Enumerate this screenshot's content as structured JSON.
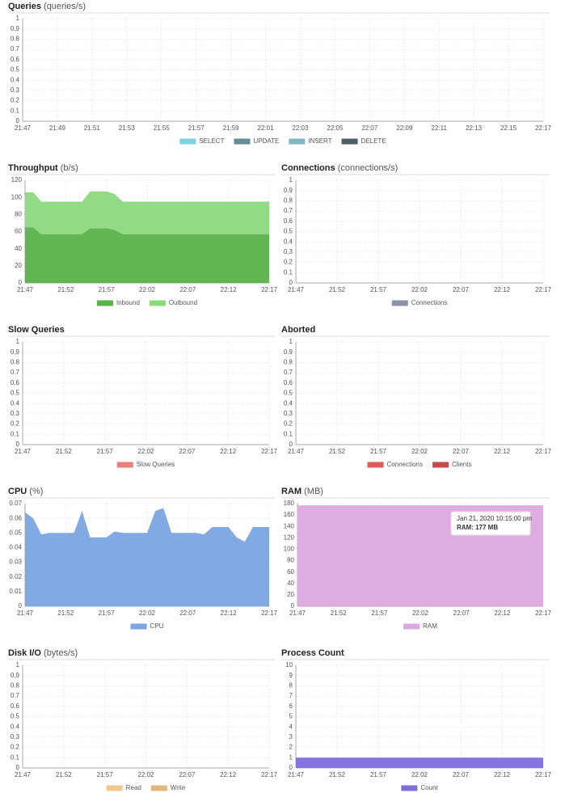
{
  "chart_data": [
    {
      "type": "line",
      "title": "Queries",
      "unit": "(queries/s)",
      "ylim": [
        0,
        1
      ],
      "yticks": [
        0,
        0.1,
        0.2,
        0.3,
        0.4,
        0.5,
        0.6,
        0.7,
        0.8,
        0.9,
        1
      ],
      "xticks": [
        "21:47",
        "21:49",
        "21:51",
        "21:53",
        "21:55",
        "21:57",
        "21:59",
        "22:01",
        "22:03",
        "22:05",
        "22:07",
        "22:09",
        "22:11",
        "22:13",
        "22:15",
        "22:17"
      ],
      "grid": true,
      "series": [
        {
          "name": "SELECT",
          "color": "#7fd3e0"
        },
        {
          "name": "UPDATE",
          "color": "#5f8f94"
        },
        {
          "name": "INSERT",
          "color": "#7fb8c4"
        },
        {
          "name": "DELETE",
          "color": "#4d5f66"
        }
      ]
    },
    {
      "type": "area",
      "stacked": true,
      "title": "Throughput",
      "unit": "(b/s)",
      "ylim": [
        0,
        120
      ],
      "yticks": [
        0,
        20,
        40,
        60,
        80,
        100,
        120
      ],
      "grid": true,
      "x": [
        "21:47",
        "21:48",
        "21:49",
        "21:50",
        "21:51",
        "21:52",
        "21:53",
        "21:54",
        "21:55",
        "21:56",
        "21:57",
        "21:58",
        "21:59",
        "22:00",
        "22:01",
        "22:02",
        "22:03",
        "22:04",
        "22:05",
        "22:06",
        "22:07",
        "22:08",
        "22:09",
        "22:10",
        "22:11",
        "22:12",
        "22:13",
        "22:14",
        "22:15",
        "22:16",
        "22:17"
      ],
      "xticks": [
        "21:47",
        "21:52",
        "21:57",
        "22:02",
        "22:07",
        "22:12",
        "22:17"
      ],
      "series": [
        {
          "name": "Inbound",
          "color": "#5ab24a",
          "values": [
            65,
            65,
            57,
            57,
            57,
            57,
            57,
            57,
            64,
            64,
            64,
            62,
            57,
            57,
            57,
            57,
            57,
            57,
            57,
            57,
            57,
            57,
            57,
            57,
            57,
            57,
            57,
            57,
            57,
            57,
            57
          ]
        },
        {
          "name": "Outbound",
          "color": "#8cd97e",
          "values": [
            41,
            41,
            38,
            38,
            38,
            38,
            38,
            38,
            43,
            43,
            43,
            42,
            38,
            38,
            38,
            38,
            38,
            38,
            38,
            38,
            38,
            38,
            38,
            38,
            38,
            38,
            38,
            38,
            38,
            38,
            38
          ]
        }
      ]
    },
    {
      "type": "line",
      "title": "Connections",
      "unit": "(connections/s)",
      "ylim": [
        0,
        1
      ],
      "yticks": [
        0,
        0.1,
        0.2,
        0.3,
        0.4,
        0.5,
        0.6,
        0.7,
        0.8,
        0.9,
        1
      ],
      "xticks": [
        "21:47",
        "21:52",
        "21:57",
        "22:02",
        "22:07",
        "22:12",
        "22:17"
      ],
      "grid": true,
      "series": [
        {
          "name": "Connections",
          "color": "#8a93a5"
        }
      ]
    },
    {
      "type": "line",
      "title": "Slow Queries",
      "ylim": [
        0,
        1
      ],
      "yticks": [
        0,
        0.1,
        0.2,
        0.3,
        0.4,
        0.5,
        0.6,
        0.7,
        0.8,
        0.9,
        1
      ],
      "xticks": [
        "21:47",
        "21:52",
        "21:57",
        "22:02",
        "22:07",
        "22:12",
        "22:17"
      ],
      "grid": true,
      "series": [
        {
          "name": "Slow Queries",
          "color": "#e88080"
        }
      ]
    },
    {
      "type": "line",
      "title": "Aborted",
      "ylim": [
        0,
        1
      ],
      "yticks": [
        0,
        0.1,
        0.2,
        0.3,
        0.4,
        0.5,
        0.6,
        0.7,
        0.8,
        0.9,
        1
      ],
      "xticks": [
        "21:47",
        "21:52",
        "21:57",
        "22:02",
        "22:07",
        "22:12",
        "22:17"
      ],
      "grid": true,
      "series": [
        {
          "name": "Connections",
          "color": "#e05a5a"
        },
        {
          "name": "Clients",
          "color": "#c94848"
        }
      ]
    },
    {
      "type": "area",
      "title": "CPU",
      "unit": "(%)",
      "ylim": [
        0,
        0.07
      ],
      "yticks": [
        0,
        0.01,
        0.02,
        0.03,
        0.04,
        0.05,
        0.06,
        0.07
      ],
      "grid": true,
      "x": [
        "21:47",
        "21:48",
        "21:49",
        "21:50",
        "21:51",
        "21:52",
        "21:53",
        "21:54",
        "21:55",
        "21:56",
        "21:57",
        "21:58",
        "21:59",
        "22:00",
        "22:01",
        "22:02",
        "22:03",
        "22:04",
        "22:05",
        "22:06",
        "22:07",
        "22:08",
        "22:09",
        "22:10",
        "22:11",
        "22:12",
        "22:13",
        "22:14",
        "22:15",
        "22:16",
        "22:17"
      ],
      "xticks": [
        "21:47",
        "21:52",
        "21:57",
        "22:02",
        "22:07",
        "22:12",
        "22:17"
      ],
      "series": [
        {
          "name": "CPU",
          "color": "#7ba5e0",
          "values": [
            0.064,
            0.06,
            0.049,
            0.05,
            0.05,
            0.05,
            0.05,
            0.065,
            0.047,
            0.047,
            0.047,
            0.051,
            0.05,
            0.05,
            0.05,
            0.05,
            0.065,
            0.067,
            0.05,
            0.05,
            0.05,
            0.05,
            0.049,
            0.054,
            0.054,
            0.054,
            0.047,
            0.044,
            0.054,
            0.054,
            0.054
          ]
        }
      ]
    },
    {
      "type": "area",
      "title": "RAM",
      "unit": "(MB)",
      "ylim": [
        0,
        180
      ],
      "yticks": [
        0,
        20,
        40,
        60,
        80,
        100,
        120,
        140,
        160,
        180
      ],
      "grid": true,
      "x": [
        "21:47",
        "21:48",
        "21:49",
        "21:50",
        "21:51",
        "21:52",
        "21:53",
        "21:54",
        "21:55",
        "21:56",
        "21:57",
        "21:58",
        "21:59",
        "22:00",
        "22:01",
        "22:02",
        "22:03",
        "22:04",
        "22:05",
        "22:06",
        "22:07",
        "22:08",
        "22:09",
        "22:10",
        "22:11",
        "22:12",
        "22:13",
        "22:14",
        "22:15",
        "22:16",
        "22:17"
      ],
      "xticks": [
        "21:47",
        "21:52",
        "21:57",
        "22:02",
        "22:07",
        "22:12",
        "22:17"
      ],
      "series": [
        {
          "name": "RAM",
          "color": "#dda8e0",
          "values": [
            177,
            177,
            177,
            177,
            177,
            177,
            177,
            177,
            177,
            177,
            177,
            177,
            177,
            177,
            177,
            177,
            177,
            177,
            177,
            177,
            177,
            177,
            177,
            177,
            177,
            177,
            177,
            177,
            177,
            177,
            177
          ]
        }
      ],
      "tooltip": {
        "title": "Jan 21, 2020 10:15:00 pm",
        "text": "RAM: 177 MB"
      }
    },
    {
      "type": "line",
      "title": "Disk I/O",
      "unit": "(bytes/s)",
      "ylim": [
        0,
        1
      ],
      "yticks": [
        0,
        0.1,
        0.2,
        0.3,
        0.4,
        0.5,
        0.6,
        0.7,
        0.8,
        0.9,
        1
      ],
      "xticks": [
        "21:47",
        "21:52",
        "21:57",
        "22:02",
        "22:07",
        "22:12",
        "22:17"
      ],
      "grid": true,
      "series": [
        {
          "name": "Read",
          "color": "#f0c88a"
        },
        {
          "name": "Write",
          "color": "#e6b877"
        }
      ]
    },
    {
      "type": "area",
      "title": "Process Count",
      "ylim": [
        0,
        10
      ],
      "yticks": [
        0,
        1,
        2,
        3,
        4,
        5,
        6,
        7,
        8,
        9,
        10
      ],
      "grid": true,
      "x": [
        "21:47",
        "21:48",
        "21:49",
        "21:50",
        "21:51",
        "21:52",
        "21:53",
        "21:54",
        "21:55",
        "21:56",
        "21:57",
        "21:58",
        "21:59",
        "22:00",
        "22:01",
        "22:02",
        "22:03",
        "22:04",
        "22:05",
        "22:06",
        "22:07",
        "22:08",
        "22:09",
        "22:10",
        "22:11",
        "22:12",
        "22:13",
        "22:14",
        "22:15",
        "22:16",
        "22:17"
      ],
      "xticks": [
        "21:47",
        "21:52",
        "21:57",
        "22:02",
        "22:07",
        "22:12",
        "22:17"
      ],
      "series": [
        {
          "name": "Count",
          "color": "#7d6ee0",
          "values": [
            1,
            1,
            1,
            1,
            1,
            1,
            1,
            1,
            1,
            1,
            1,
            1,
            1,
            1,
            1,
            1,
            1,
            1,
            1,
            1,
            1,
            1,
            1,
            1,
            1,
            1,
            1,
            1,
            1,
            1,
            1
          ]
        }
      ]
    }
  ]
}
